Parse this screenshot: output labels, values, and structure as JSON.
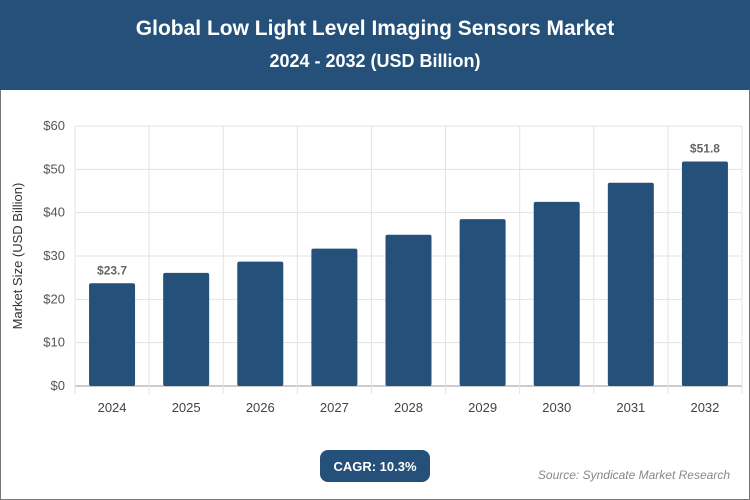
{
  "title": "Global Low Light Level Imaging Sensors Market",
  "subtitle": "2024 - 2032 (USD Billion)",
  "cagr_label": "CAGR: 10.3%",
  "source": "Source: Syndicate Market Research",
  "colors": {
    "bar": "#24507a",
    "header": "#24507a"
  },
  "chart_data": {
    "type": "bar",
    "title": "Global Low Light Level Imaging Sensors Market",
    "subtitle": "2024 - 2032 (USD Billion)",
    "xlabel": "",
    "ylabel": "Market Size (USD Billion)",
    "categories": [
      "2024",
      "2025",
      "2026",
      "2027",
      "2028",
      "2029",
      "2030",
      "2031",
      "2032"
    ],
    "values": [
      23.7,
      26.1,
      28.7,
      31.7,
      34.9,
      38.5,
      42.5,
      46.9,
      51.8
    ],
    "data_labels": {
      "2024": "$23.7",
      "2032": "$51.8"
    },
    "ylim": [
      0,
      60
    ],
    "yticks": [
      "$0",
      "$10",
      "$20",
      "$30",
      "$40",
      "$50",
      "$60"
    ],
    "grid": true,
    "legend": "none"
  }
}
